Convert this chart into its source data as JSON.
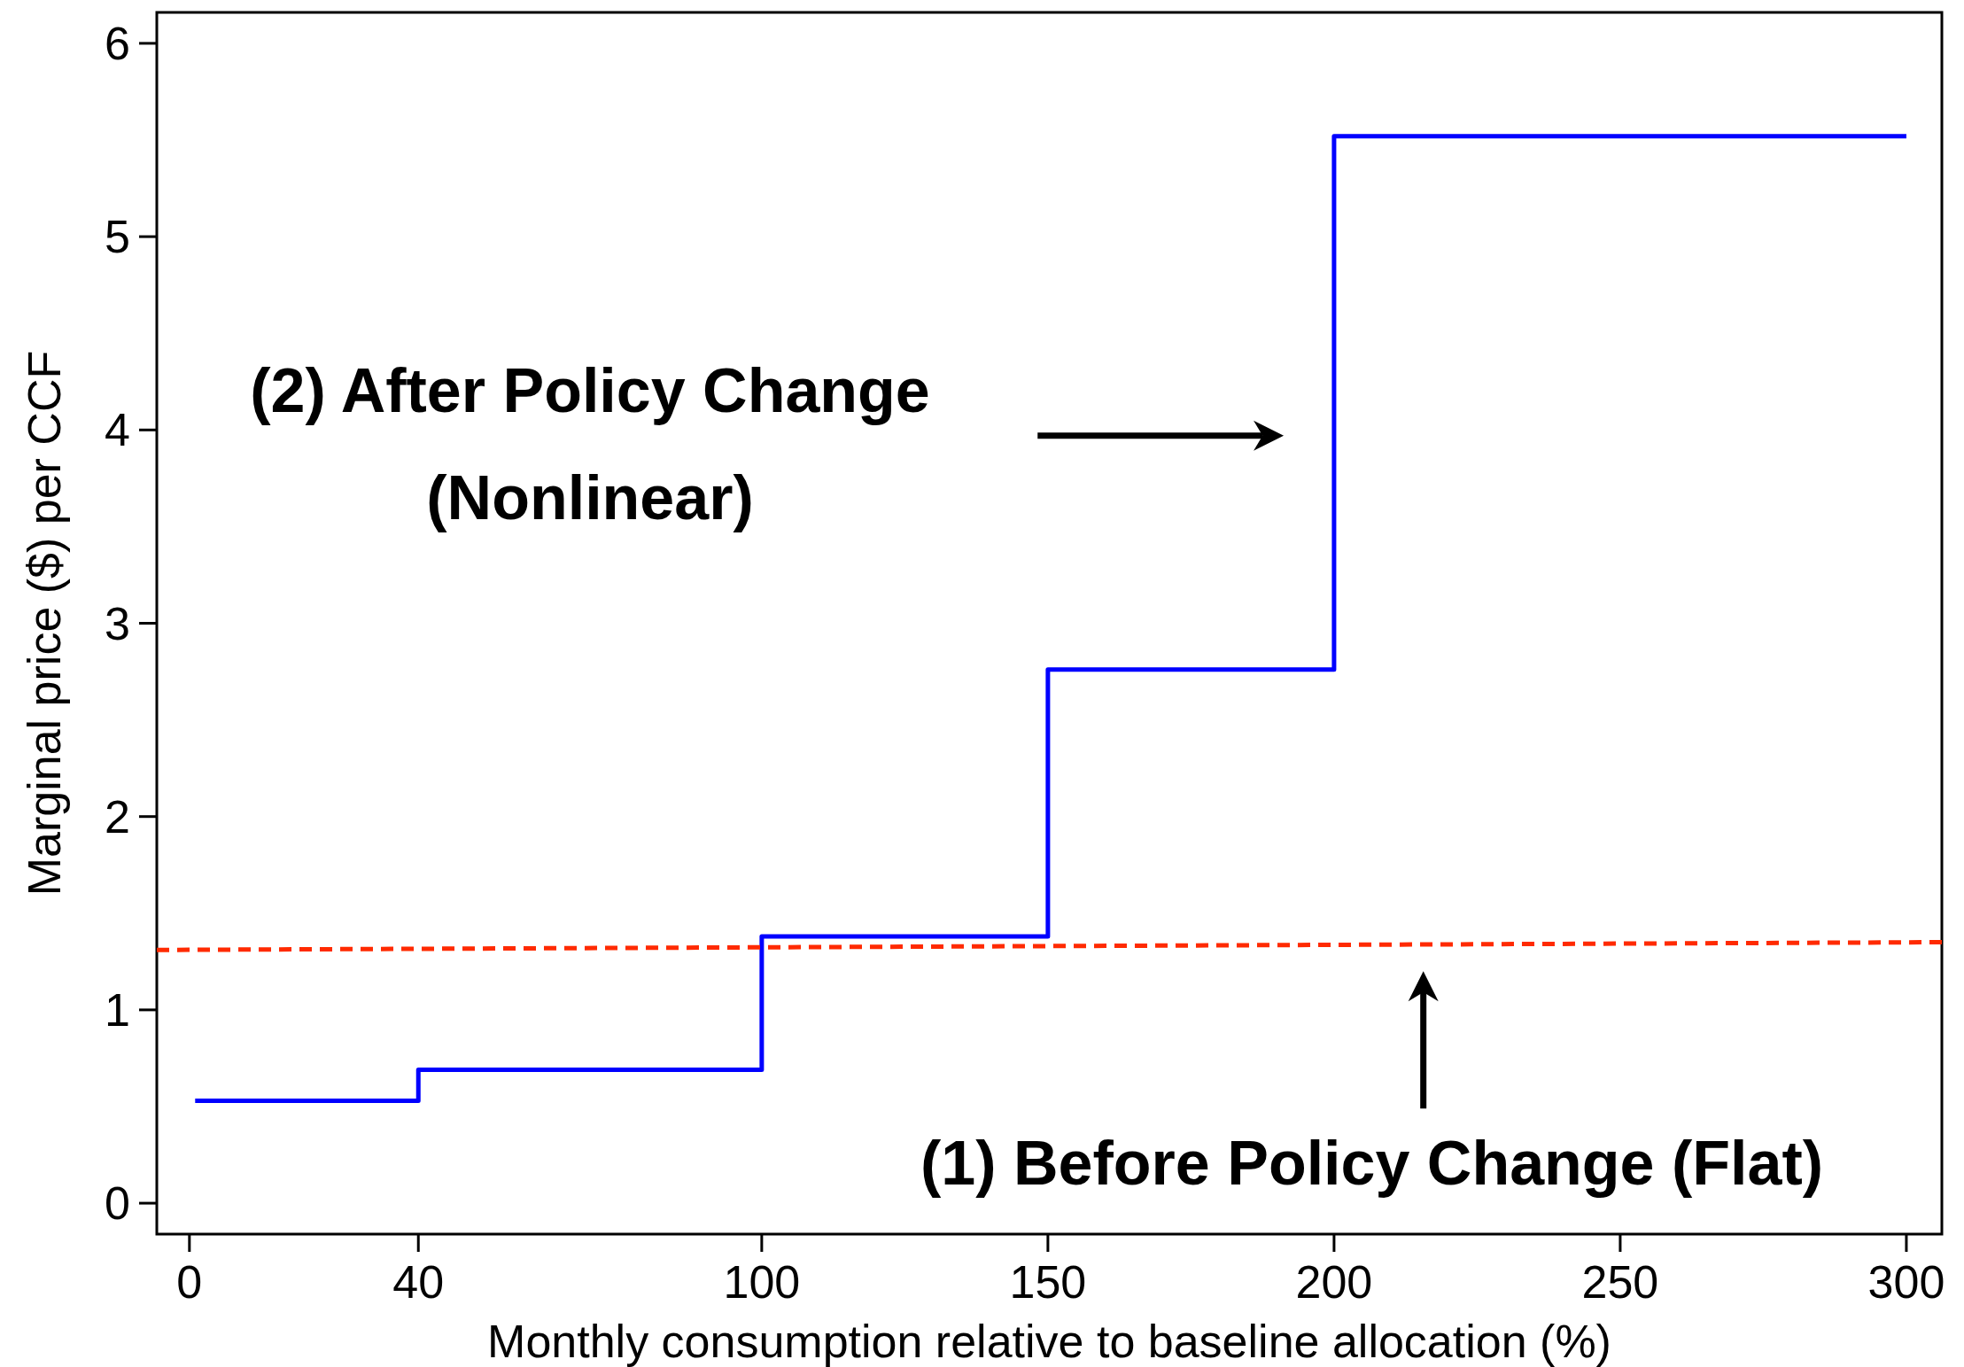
{
  "chart_data": {
    "type": "step",
    "xlabel": "Monthly consumption relative to baseline allocation (%)",
    "ylabel": "Marginal price ($) per CCF",
    "xlim": [
      -5.7,
      306.2
    ],
    "xticks": [
      0,
      40,
      100,
      150,
      200,
      250,
      300
    ],
    "ylim": [
      -0.16,
      6.16
    ],
    "yticks": [
      0,
      1,
      2,
      3,
      4,
      5,
      6
    ],
    "grid": false,
    "marker": "none",
    "series": [
      {
        "color": "#0000ff",
        "x": [
          1,
          40,
          100,
          150,
          200,
          300
        ],
        "values": [
          0.53,
          0.69,
          1.38,
          2.76,
          5.52,
          5.52
        ],
        "line_style": "solid"
      },
      {
        "type": "line",
        "color": "#ff2a00",
        "x": [
          -5.7,
          306.2
        ],
        "values": [
          1.31,
          1.35
        ],
        "line_style": "dashed"
      }
    ],
    "annotations": [
      "(2) After Policy Change\n(Nonlinear)",
      "(1) Before Policy Change (Flat)"
    ]
  }
}
